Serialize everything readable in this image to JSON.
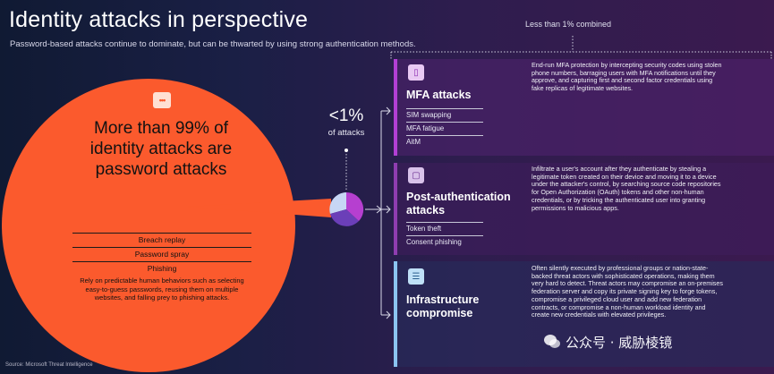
{
  "header": {
    "title": "Identity attacks in perspective",
    "subtitle": "Password-based attacks continue to dominate, but can be thwarted by using strong authentication methods."
  },
  "password_circle": {
    "headline": "More than 99% of identity attacks are password attacks",
    "methods": [
      "Breach replay",
      "Password spray",
      "Phishing"
    ],
    "description": "Rely on predictable human behaviors such as selecting easy-to-guess passwords, reusing them on multiple websites, and falling prey to phishing attacks."
  },
  "small_stat": {
    "value": "<1%",
    "label": "of attacks"
  },
  "combined_label": "Less than 1% combined",
  "panels": [
    {
      "title": "MFA attacks",
      "items": [
        "SIM swapping",
        "MFA fatigue",
        "AitM"
      ],
      "description": "End-run MFA protection by intercepting security codes using stolen phone numbers, barraging users with MFA notifications until they approve, and capturing first and second factor credentials using fake replicas of legitimate websites."
    },
    {
      "title": "Post-authentication attacks",
      "items": [
        "Token theft",
        "Consent phishing"
      ],
      "description": "Infiltrate a user's account after they authenticate by stealing a legitimate token created on their device and moving it to a device under the attacker's control, by searching source code repositories for Open Authorization (OAuth) tokens and other non-human credentials, or by tricking the authenticated user into granting permissions to malicious apps."
    },
    {
      "title": "Infrastructure compromise",
      "items": [],
      "description": "Often silently executed by professional groups or nation-state-backed threat actors with sophisticated operations, making them very hard to detect. Threat actors may compromise an on-premises federation server and copy its private signing key to forge tokens, compromise a privileged cloud user and add new federation contracts, or compromise a non-human workload identity and create new credentials with elevated privileges."
    }
  ],
  "source": "Source: Microsoft Threat Intelligence",
  "watermark": "公众号 · 威胁棱镜",
  "colors": {
    "circle": "#fb5a2d",
    "mfa_accent": "#b23fd4",
    "post_accent": "#8f3db0",
    "infra_accent": "#8bc4f0",
    "pie_light": "#c7d6f5",
    "pie_purple": "#6b3fb8",
    "pie_magenta": "#b63fd0"
  },
  "icons": {
    "password": "password-dots-icon",
    "mfa": "phone-icon",
    "post": "device-icon",
    "infra": "server-icon",
    "watermark": "wechat-icon"
  }
}
